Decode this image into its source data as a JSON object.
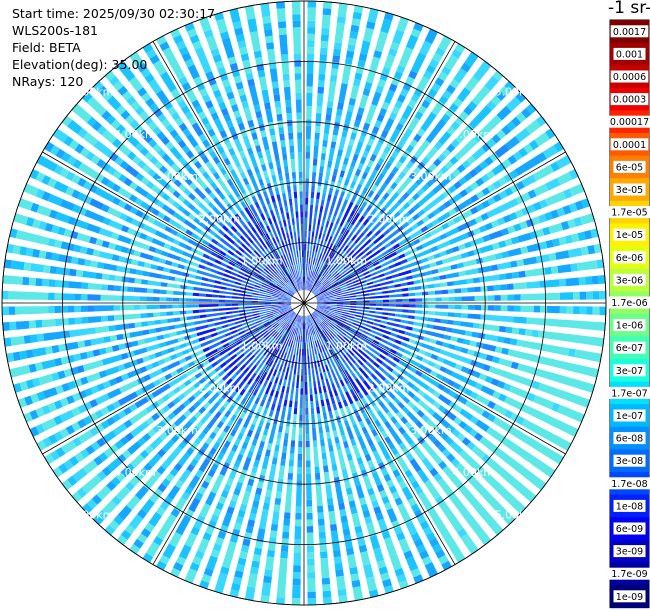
{
  "info": {
    "start_time": "Start time: 2025/09/30 02:30:17",
    "instrument": "WLS200s-181",
    "field": "Field: BETA",
    "elevation": "Elevation(deg): 35.00",
    "nrays": "NRays: 120"
  },
  "colorbar": {
    "title": "-1 sr-",
    "ticks": [
      "0.0017",
      "0.001",
      "0.0006",
      "0.0003",
      "0.00017",
      "0.0001",
      "6e-05",
      "3e-05",
      "1.7e-05",
      "1e-05",
      "6e-06",
      "3e-06",
      "1.7e-06",
      "1e-06",
      "6e-07",
      "3e-07",
      "1.7e-07",
      "1e-07",
      "6e-08",
      "3e-08",
      "1.7e-08",
      "1e-08",
      "6e-09",
      "3e-09",
      "1.7e-09",
      "1e-09"
    ],
    "colors": [
      "#7f0000",
      "#a00000",
      "#c80000",
      "#ee0000",
      "#ff2400",
      "#ff5a00",
      "#ff8000",
      "#ffa800",
      "#ffd400",
      "#fff200",
      "#e4ff14",
      "#bcff3a",
      "#94ff63",
      "#6cff8b",
      "#42ffb4",
      "#1affde",
      "#00e0ff",
      "#00b8ff",
      "#0090ff",
      "#006cff",
      "#0048ff",
      "#0020ff",
      "#0000f2",
      "#0000c8",
      "#00009e",
      "#000078"
    ]
  },
  "chart_data": {
    "type": "ppi",
    "field": "BETA",
    "n_rays": 120,
    "elevation_deg": 35.0,
    "max_range_km": 5.0,
    "range_ring_labels": [
      "1.00km",
      "2.00km",
      "3.00km",
      "4.00km",
      "5.00km"
    ],
    "range_rings_km": [
      1,
      2,
      3,
      4,
      5
    ],
    "colorscale": "jet",
    "grid": true
  }
}
